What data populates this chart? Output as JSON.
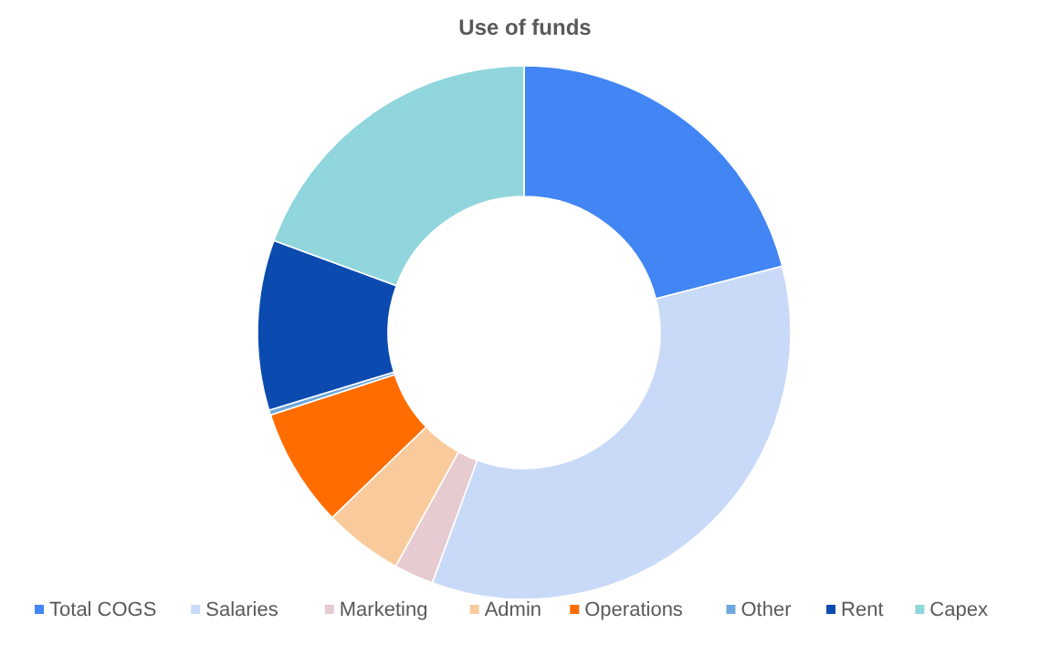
{
  "chart_data": {
    "type": "donut",
    "title": "Use of funds",
    "categories": [
      "Total COGS",
      "Salaries",
      "Marketing",
      "Admin",
      "Operations",
      "Other",
      "Rent",
      "Capex"
    ],
    "values": [
      21,
      34.6,
      2.4,
      4.8,
      7.2,
      0.3,
      10.3,
      19.4
    ],
    "colors": [
      "#4285f4",
      "#c9daf8",
      "#e6cbd0",
      "#f9cb9c",
      "#ff6d01",
      "#6fa8dc",
      "#0b4bb0",
      "#90d6dc"
    ],
    "legend": "bottom"
  }
}
